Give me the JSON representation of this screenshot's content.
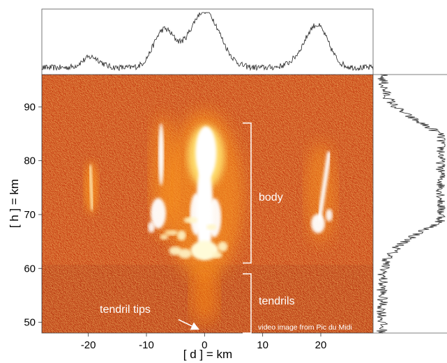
{
  "chart_data": {
    "type": "heatmap",
    "title": "",
    "xlabel": "[ d ] = km",
    "ylabel": "[ h ] = km",
    "xlim": [
      -28,
      29
    ],
    "ylim": [
      48,
      96
    ],
    "x_ticks": [
      -20,
      -10,
      0,
      10,
      20
    ],
    "y_ticks": [
      50,
      60,
      70,
      80,
      90
    ],
    "colormap": "black-red-yellow-white (hot)",
    "annotations": {
      "body_label": "body",
      "tendrils_label": "tendrils",
      "tendril_tips_label": "tendril tips",
      "credit": "video image from Pic du Midi"
    },
    "brackets": [
      {
        "name": "body",
        "x": 8,
        "y_range": [
          61,
          87
        ]
      },
      {
        "name": "tendrils",
        "x": 8,
        "y_range": [
          48,
          59
        ]
      }
    ],
    "arrow": {
      "from": [
        -4.5,
        50.5
      ],
      "to": [
        -1.2,
        48.8
      ]
    },
    "luminous_features": [
      {
        "name": "left-column-streak",
        "x": -19.5,
        "y_range": [
          71,
          79
        ]
      },
      {
        "name": "main-body",
        "x": 0,
        "y_range": [
          61,
          86
        ]
      },
      {
        "name": "left-sprite",
        "x": -7,
        "y_range": [
          67,
          87
        ]
      },
      {
        "name": "right-sprite",
        "x": 20,
        "y_range": [
          66,
          82
        ]
      }
    ],
    "top_profile": {
      "description": "horizontal intensity profile (column sum)",
      "x_peaks": [
        {
          "x": -7,
          "level": 0.62
        },
        {
          "x": 0,
          "level": 0.95
        },
        {
          "x": 19.5,
          "level": 0.45
        }
      ],
      "baseline_level": 0.08
    },
    "right_profile": {
      "description": "vertical intensity profile (row sum)",
      "y_peaks": [
        {
          "y": 83,
          "level": 0.9
        },
        {
          "y": 75,
          "level": 0.75
        },
        {
          "y": 70,
          "level": 0.65
        }
      ],
      "baseline_level": 0.1
    }
  }
}
